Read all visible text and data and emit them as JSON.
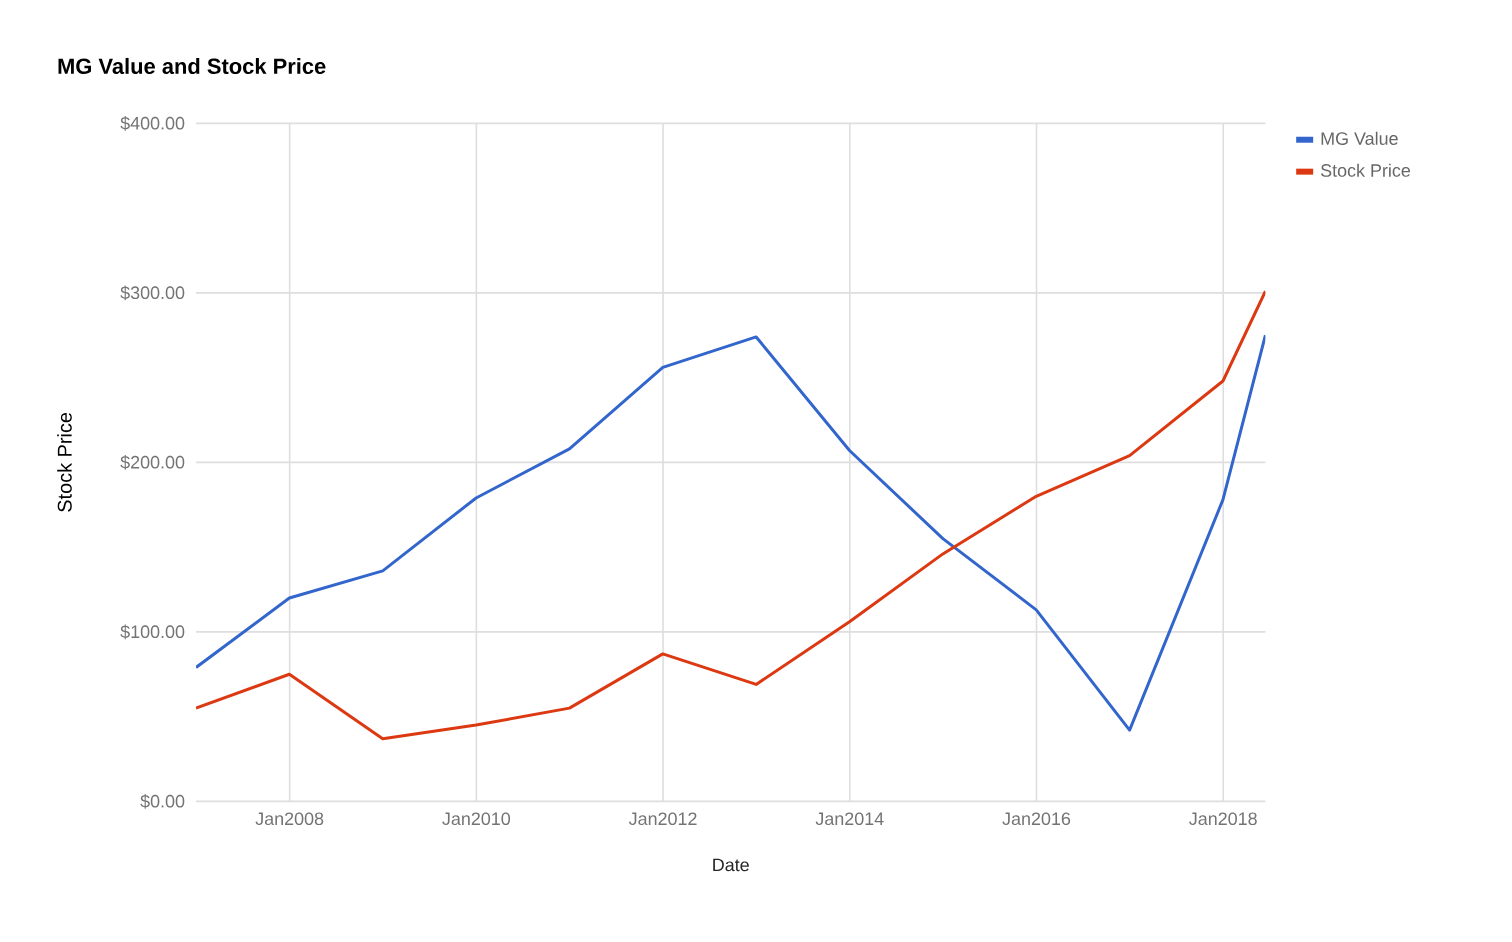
{
  "chart_data": {
    "type": "line",
    "title": "MG Value and Stock Price",
    "xlabel": "Date",
    "ylabel": "Stock Price",
    "x": [
      "2006-12-31",
      "2007-12-31",
      "2008-12-31",
      "2009-12-31",
      "2010-12-31",
      "2011-12-31",
      "2012-12-31",
      "2013-12-31",
      "2014-12-31",
      "2015-12-31",
      "2016-12-31",
      "2017-12-31",
      "2018-06-15"
    ],
    "series": [
      {
        "name": "MG Value",
        "color": "#3366cc",
        "values": [
          79,
          120,
          136,
          179,
          208,
          256,
          274,
          207,
          155,
          113,
          42,
          178,
          275
        ]
      },
      {
        "name": "Stock Price",
        "color": "#dc3912",
        "values": [
          55,
          75,
          37,
          45,
          55,
          87,
          69,
          106,
          146,
          180,
          204,
          248,
          301
        ]
      }
    ],
    "xlim": [
      "2006-12-31",
      "2018-06-15"
    ],
    "xticks": [
      {
        "value": "2008-01-01",
        "label": "Jan2008"
      },
      {
        "value": "2010-01-01",
        "label": "Jan2010"
      },
      {
        "value": "2012-01-01",
        "label": "Jan2012"
      },
      {
        "value": "2014-01-01",
        "label": "Jan2014"
      },
      {
        "value": "2016-01-01",
        "label": "Jan2016"
      },
      {
        "value": "2018-01-01",
        "label": "Jan2018"
      }
    ],
    "ylim": [
      0,
      400
    ],
    "yticks": [
      {
        "value": 0,
        "label": "$0.00"
      },
      {
        "value": 100,
        "label": "$100.00"
      },
      {
        "value": 200,
        "label": "$200.00"
      },
      {
        "value": 300,
        "label": "$300.00"
      },
      {
        "value": 400,
        "label": "$400.00"
      }
    ],
    "grid": true,
    "legend": "right",
    "line_style": "solid"
  }
}
